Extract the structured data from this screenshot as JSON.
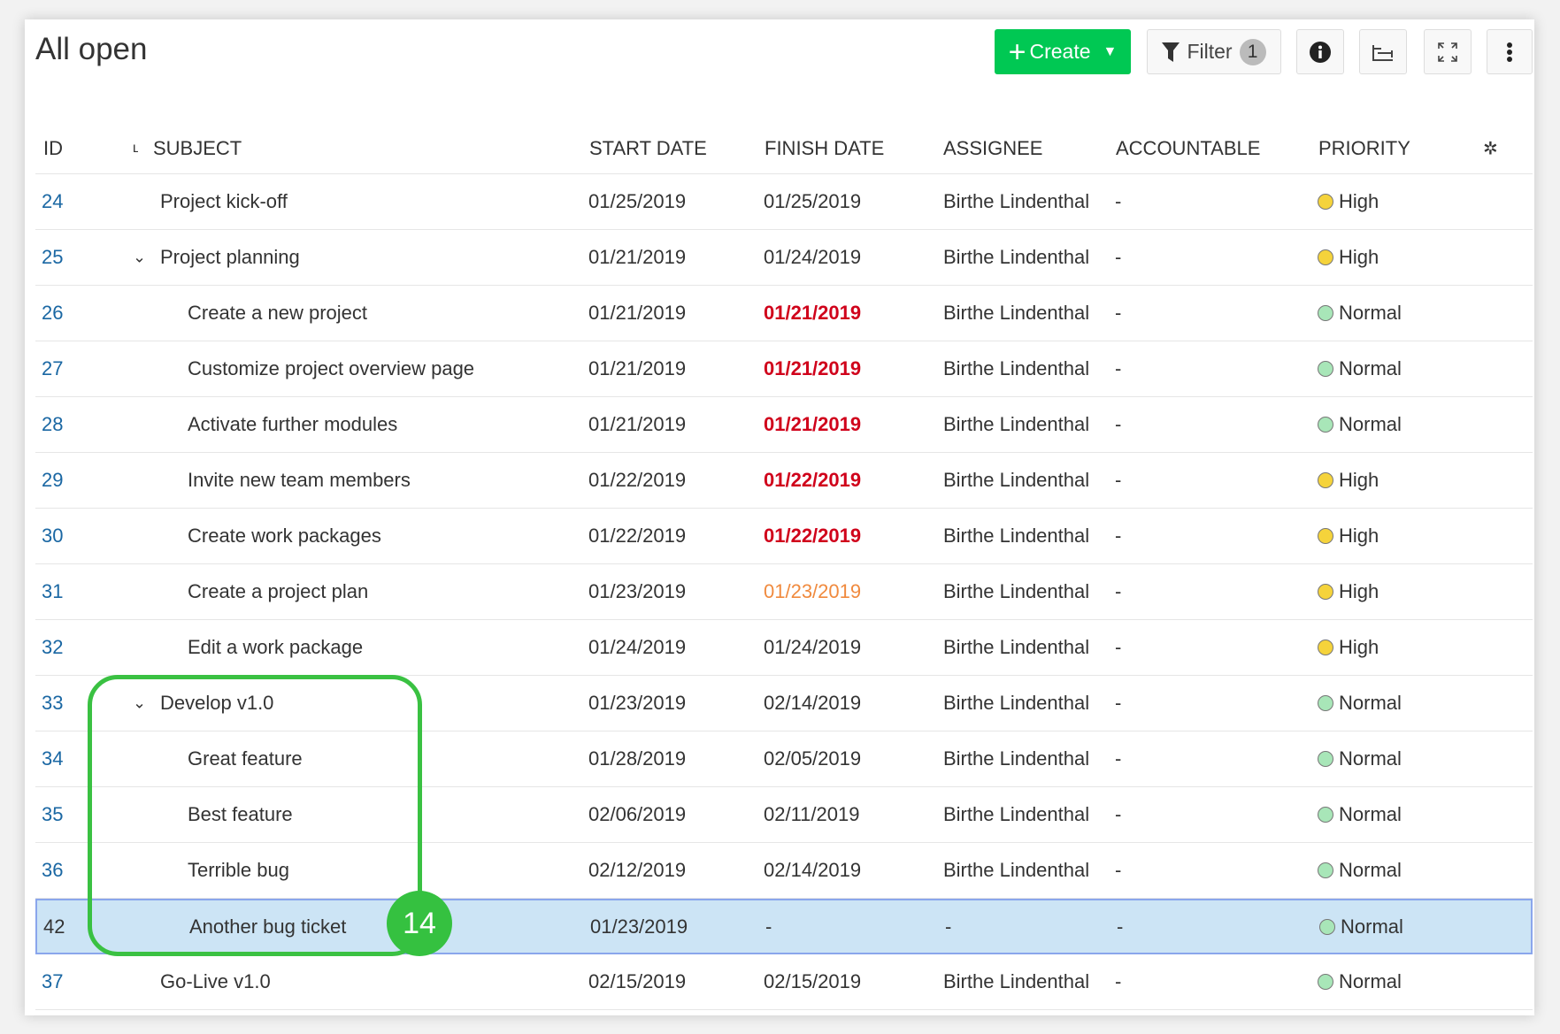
{
  "header": {
    "title": "All open",
    "create_label": "Create",
    "filter_label": "Filter",
    "filter_count": "1"
  },
  "columns": {
    "id": "ID",
    "subject": "SUBJECT",
    "start": "START DATE",
    "finish": "FINISH DATE",
    "assignee": "ASSIGNEE",
    "accountable": "ACCOUNTABLE",
    "priority": "PRIORITY"
  },
  "colors": {
    "accent": "#00c853",
    "overdue": "#d0021b",
    "due_today": "#f08a3e",
    "high": "#f5d33b",
    "normal": "#a8e6b8",
    "annotation": "#35c140",
    "selected": "#cce4f5"
  },
  "annotation": {
    "number": "14"
  },
  "rows": [
    {
      "id": "24",
      "subject": "Project kick-off",
      "level": 0,
      "expand": false,
      "start": "01/25/2019",
      "finish": "01/25/2019",
      "finish_state": "",
      "assignee": "Birthe Lindenthal",
      "accountable": "-",
      "priority": "High"
    },
    {
      "id": "25",
      "subject": "Project planning",
      "level": 0,
      "expand": true,
      "start": "01/21/2019",
      "finish": "01/24/2019",
      "finish_state": "",
      "assignee": "Birthe Lindenthal",
      "accountable": "-",
      "priority": "High"
    },
    {
      "id": "26",
      "subject": "Create a new project",
      "level": 1,
      "expand": false,
      "start": "01/21/2019",
      "finish": "01/21/2019",
      "finish_state": "overdue",
      "assignee": "Birthe Lindenthal",
      "accountable": "-",
      "priority": "Normal"
    },
    {
      "id": "27",
      "subject": "Customize project overview page",
      "level": 1,
      "expand": false,
      "start": "01/21/2019",
      "finish": "01/21/2019",
      "finish_state": "overdue",
      "assignee": "Birthe Lindenthal",
      "accountable": "-",
      "priority": "Normal"
    },
    {
      "id": "28",
      "subject": "Activate further modules",
      "level": 1,
      "expand": false,
      "start": "01/21/2019",
      "finish": "01/21/2019",
      "finish_state": "overdue",
      "assignee": "Birthe Lindenthal",
      "accountable": "-",
      "priority": "Normal"
    },
    {
      "id": "29",
      "subject": "Invite new team members",
      "level": 1,
      "expand": false,
      "start": "01/22/2019",
      "finish": "01/22/2019",
      "finish_state": "overdue",
      "assignee": "Birthe Lindenthal",
      "accountable": "-",
      "priority": "High"
    },
    {
      "id": "30",
      "subject": "Create work packages",
      "level": 1,
      "expand": false,
      "start": "01/22/2019",
      "finish": "01/22/2019",
      "finish_state": "overdue",
      "assignee": "Birthe Lindenthal",
      "accountable": "-",
      "priority": "High"
    },
    {
      "id": "31",
      "subject": "Create a project plan",
      "level": 1,
      "expand": false,
      "start": "01/23/2019",
      "finish": "01/23/2019",
      "finish_state": "today",
      "assignee": "Birthe Lindenthal",
      "accountable": "-",
      "priority": "High"
    },
    {
      "id": "32",
      "subject": "Edit a work package",
      "level": 1,
      "expand": false,
      "start": "01/24/2019",
      "finish": "01/24/2019",
      "finish_state": "",
      "assignee": "Birthe Lindenthal",
      "accountable": "-",
      "priority": "High"
    },
    {
      "id": "33",
      "subject": "Develop v1.0",
      "level": 0,
      "expand": true,
      "start": "01/23/2019",
      "finish": "02/14/2019",
      "finish_state": "",
      "assignee": "Birthe Lindenthal",
      "accountable": "-",
      "priority": "Normal"
    },
    {
      "id": "34",
      "subject": "Great feature",
      "level": 1,
      "expand": false,
      "start": "01/28/2019",
      "finish": "02/05/2019",
      "finish_state": "",
      "assignee": "Birthe Lindenthal",
      "accountable": "-",
      "priority": "Normal"
    },
    {
      "id": "35",
      "subject": "Best feature",
      "level": 1,
      "expand": false,
      "start": "02/06/2019",
      "finish": "02/11/2019",
      "finish_state": "",
      "assignee": "Birthe Lindenthal",
      "accountable": "-",
      "priority": "Normal"
    },
    {
      "id": "36",
      "subject": "Terrible bug",
      "level": 1,
      "expand": false,
      "start": "02/12/2019",
      "finish": "02/14/2019",
      "finish_state": "",
      "assignee": "Birthe Lindenthal",
      "accountable": "-",
      "priority": "Normal"
    },
    {
      "id": "42",
      "subject": "Another bug ticket",
      "level": 1,
      "expand": false,
      "start": "01/23/2019",
      "finish": "-",
      "finish_state": "",
      "assignee": "-",
      "accountable": "-",
      "priority": "Normal",
      "selected": true
    },
    {
      "id": "37",
      "subject": "Go-Live v1.0",
      "level": 0,
      "expand": false,
      "start": "02/15/2019",
      "finish": "02/15/2019",
      "finish_state": "",
      "assignee": "Birthe Lindenthal",
      "accountable": "-",
      "priority": "Normal"
    }
  ]
}
